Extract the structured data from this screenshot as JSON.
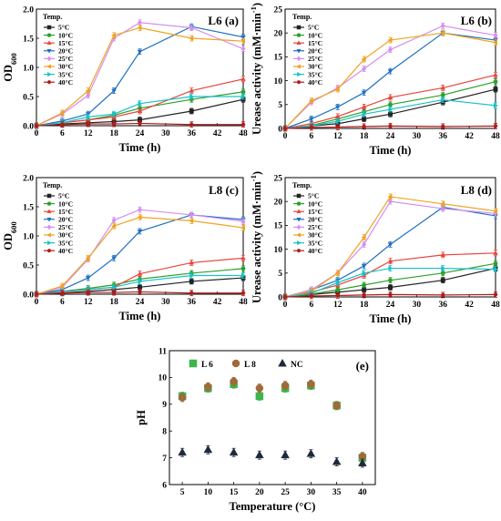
{
  "colors": {
    "5C": "#222222",
    "10C": "#2ca02c",
    "15C": "#e8463c",
    "20C": "#1f6fbf",
    "25C": "#d58ef0",
    "30C": "#f0a31f",
    "35C": "#17c3c9",
    "40C": "#b11a1a",
    "L6": "#3cb54a",
    "L8": "#a06a3a",
    "NC": "#1e2a3c"
  },
  "chart_data": [
    {
      "id": "a",
      "type": "line",
      "panel_label": "L6 (a)",
      "xlabel": "Time (h)",
      "ylabel": "OD",
      "ylabel_sub": "600",
      "xlim": [
        0,
        48
      ],
      "ylim": [
        0,
        2.0
      ],
      "xticks": [
        "0",
        "6",
        "12",
        "18",
        "24",
        "30",
        "36",
        "42",
        "48"
      ],
      "yticks": [
        "0.0",
        "0.5",
        "1.0",
        "1.5",
        "2.0"
      ],
      "legend_title": "Temp.",
      "x": [
        0,
        6,
        12,
        18,
        24,
        36,
        48
      ],
      "series": [
        {
          "name": "5°C",
          "key": "5C",
          "marker": "square",
          "values": [
            0,
            0.03,
            0.05,
            0.07,
            0.1,
            0.25,
            0.45
          ]
        },
        {
          "name": "10°C",
          "key": "10C",
          "marker": "circle",
          "values": [
            0,
            0.05,
            0.1,
            0.18,
            0.3,
            0.45,
            0.58
          ]
        },
        {
          "name": "15°C",
          "key": "15C",
          "marker": "triangle",
          "values": [
            0,
            0.05,
            0.1,
            0.15,
            0.25,
            0.6,
            0.8
          ]
        },
        {
          "name": "20°C",
          "key": "20C",
          "marker": "triangle-down",
          "values": [
            0,
            0.08,
            0.2,
            0.6,
            1.27,
            1.7,
            1.52
          ]
        },
        {
          "name": "25°C",
          "key": "25C",
          "marker": "diamond",
          "values": [
            0,
            0.2,
            0.52,
            1.5,
            1.77,
            1.68,
            1.32
          ]
        },
        {
          "name": "30°C",
          "key": "30C",
          "marker": "triangle-left",
          "values": [
            0,
            0.22,
            0.6,
            1.55,
            1.68,
            1.5,
            1.45
          ]
        },
        {
          "name": "35°C",
          "key": "35C",
          "marker": "triangle-right",
          "values": [
            0,
            0.05,
            0.15,
            0.2,
            0.38,
            0.5,
            0.5
          ]
        },
        {
          "name": "40°C",
          "key": "40C",
          "marker": "hexagon",
          "values": [
            0,
            0.02,
            0.03,
            0.03,
            0.04,
            0.02,
            0.02
          ]
        }
      ]
    },
    {
      "id": "b",
      "type": "line",
      "panel_label": "L6 (b)",
      "xlabel": "Time (h)",
      "ylabel": "Urease activity (mM·min",
      "ylabel_sup": "-1",
      "ylabel_end": ")",
      "xlim": [
        0,
        48
      ],
      "ylim": [
        0,
        25
      ],
      "xticks": [
        "0",
        "6",
        "12",
        "18",
        "24",
        "30",
        "36",
        "42",
        "48"
      ],
      "yticks": [
        "0",
        "5",
        "10",
        "15",
        "20",
        "25"
      ],
      "legend_title": "Temp.",
      "x": [
        0,
        6,
        12,
        18,
        24,
        36,
        48
      ],
      "series": [
        {
          "name": "5°C",
          "key": "5C",
          "marker": "square",
          "values": [
            0,
            0.5,
            1.0,
            2.0,
            3.0,
            5.5,
            8.2
          ]
        },
        {
          "name": "10°C",
          "key": "10C",
          "marker": "circle",
          "values": [
            0,
            0.6,
            2.0,
            3.5,
            5.0,
            7.0,
            9.8
          ]
        },
        {
          "name": "15°C",
          "key": "15C",
          "marker": "triangle",
          "values": [
            0,
            1.0,
            2.5,
            4.5,
            6.5,
            8.5,
            11.2
          ]
        },
        {
          "name": "20°C",
          "key": "20C",
          "marker": "triangle-down",
          "values": [
            0,
            2.0,
            4.5,
            7.5,
            12.0,
            20.0,
            18.5
          ]
        },
        {
          "name": "25°C",
          "key": "25C",
          "marker": "diamond",
          "values": [
            0,
            5.5,
            8.5,
            12.5,
            16.5,
            21.5,
            19.5
          ]
        },
        {
          "name": "30°C",
          "key": "30C",
          "marker": "triangle-left",
          "values": [
            0,
            5.8,
            8.2,
            14.5,
            18.5,
            20.0,
            18.0
          ]
        },
        {
          "name": "35°C",
          "key": "35C",
          "marker": "triangle-right",
          "values": [
            0,
            0.5,
            1.5,
            3.0,
            4.0,
            6.0,
            4.8
          ]
        },
        {
          "name": "40°C",
          "key": "40C",
          "marker": "hexagon",
          "values": [
            0,
            0.2,
            0.3,
            0.4,
            0.5,
            0.4,
            0.5
          ]
        }
      ]
    },
    {
      "id": "c",
      "type": "line",
      "panel_label": "L8 (c)",
      "xlabel": "Time (h)",
      "ylabel": "OD",
      "ylabel_sub": "600",
      "xlim": [
        0,
        48
      ],
      "ylim": [
        0,
        2.0
      ],
      "xticks": [
        "0",
        "6",
        "12",
        "18",
        "24",
        "30",
        "36",
        "42",
        "48"
      ],
      "yticks": [
        "0.0",
        "0.5",
        "1.0",
        "1.5",
        "2.0"
      ],
      "legend_title": "Temp.",
      "x": [
        0,
        6,
        12,
        18,
        24,
        36,
        48
      ],
      "series": [
        {
          "name": "5°C",
          "key": "5C",
          "marker": "square",
          "values": [
            0,
            0.02,
            0.05,
            0.08,
            0.12,
            0.22,
            0.28
          ]
        },
        {
          "name": "10°C",
          "key": "10C",
          "marker": "circle",
          "values": [
            0,
            0.05,
            0.1,
            0.16,
            0.26,
            0.36,
            0.44
          ]
        },
        {
          "name": "15°C",
          "key": "15C",
          "marker": "triangle",
          "values": [
            0,
            0.05,
            0.08,
            0.12,
            0.35,
            0.54,
            0.62
          ]
        },
        {
          "name": "20°C",
          "key": "20C",
          "marker": "triangle-down",
          "values": [
            0,
            0.08,
            0.28,
            0.62,
            1.08,
            1.36,
            1.28
          ]
        },
        {
          "name": "25°C",
          "key": "25C",
          "marker": "diamond",
          "values": [
            0,
            0.12,
            0.6,
            1.27,
            1.45,
            1.36,
            1.25
          ]
        },
        {
          "name": "30°C",
          "key": "30C",
          "marker": "triangle-left",
          "values": [
            0,
            0.14,
            0.62,
            1.17,
            1.32,
            1.26,
            1.14
          ]
        },
        {
          "name": "35°C",
          "key": "35C",
          "marker": "triangle-right",
          "values": [
            0,
            0.04,
            0.08,
            0.12,
            0.22,
            0.32,
            0.32
          ]
        },
        {
          "name": "40°C",
          "key": "40C",
          "marker": "hexagon",
          "values": [
            0,
            0.02,
            0.03,
            0.03,
            0.04,
            0.02,
            0.02
          ]
        }
      ]
    },
    {
      "id": "d",
      "type": "line",
      "panel_label": "L8 (d)",
      "xlabel": "Time (h)",
      "ylabel": "Urease activity (mM·min",
      "ylabel_sup": "-1",
      "ylabel_end": ")",
      "xlim": [
        0,
        48
      ],
      "ylim": [
        0,
        25
      ],
      "xticks": [
        "0",
        "6",
        "12",
        "18",
        "24",
        "30",
        "36",
        "42",
        "48"
      ],
      "yticks": [
        "0",
        "5",
        "10",
        "15",
        "20",
        "25"
      ],
      "legend_title": "Temp.",
      "x": [
        0,
        6,
        12,
        18,
        24,
        36,
        48
      ],
      "series": [
        {
          "name": "5°C",
          "key": "5C",
          "marker": "square",
          "values": [
            0,
            0.5,
            1.0,
            1.5,
            2.0,
            3.5,
            6.0
          ]
        },
        {
          "name": "10°C",
          "key": "10C",
          "marker": "circle",
          "values": [
            0,
            0.6,
            1.5,
            2.5,
            3.5,
            5.0,
            7.0
          ]
        },
        {
          "name": "15°C",
          "key": "15C",
          "marker": "triangle",
          "values": [
            0,
            1.0,
            2.5,
            4.5,
            7.5,
            8.8,
            9.2
          ]
        },
        {
          "name": "20°C",
          "key": "20C",
          "marker": "triangle-down",
          "values": [
            0,
            1.5,
            3.5,
            6.5,
            11.0,
            18.8,
            17.0
          ]
        },
        {
          "name": "25°C",
          "key": "25C",
          "marker": "diamond",
          "values": [
            0,
            1.5,
            5.0,
            11.0,
            20.0,
            18.5,
            17.5
          ]
        },
        {
          "name": "30°C",
          "key": "30C",
          "marker": "triangle-left",
          "values": [
            0,
            1.2,
            5.0,
            12.5,
            21.0,
            19.5,
            18.0
          ]
        },
        {
          "name": "35°C",
          "key": "35C",
          "marker": "triangle-right",
          "values": [
            0,
            0.8,
            3.0,
            5.0,
            6.0,
            6.0,
            5.8
          ]
        },
        {
          "name": "40°C",
          "key": "40C",
          "marker": "hexagon",
          "values": [
            0,
            0.2,
            0.3,
            0.4,
            0.5,
            0.4,
            0.5
          ]
        }
      ]
    },
    {
      "id": "e",
      "type": "scatter",
      "panel_label": "(e)",
      "xlabel": "Temperature (°C)",
      "ylabel": "pH",
      "xlim": [
        2.5,
        42.5
      ],
      "ylim": [
        6,
        11
      ],
      "xticks": [
        "5",
        "10",
        "15",
        "20",
        "25",
        "30",
        "35",
        "40"
      ],
      "yticks": [
        "6",
        "7",
        "8",
        "9",
        "10",
        "11"
      ],
      "x": [
        5,
        10,
        15,
        20,
        25,
        30,
        35,
        40
      ],
      "series": [
        {
          "name": "L 6",
          "key": "L6",
          "marker": "square",
          "values": [
            9.3,
            9.6,
            9.75,
            9.3,
            9.6,
            9.7,
            8.95,
            7.0
          ]
        },
        {
          "name": "L 8",
          "key": "L8",
          "marker": "circle",
          "values": [
            9.25,
            9.65,
            9.85,
            9.6,
            9.7,
            9.75,
            8.95,
            7.05
          ]
        },
        {
          "name": "NC",
          "key": "NC",
          "marker": "triangle",
          "values": [
            7.2,
            7.3,
            7.2,
            7.1,
            7.1,
            7.15,
            6.85,
            6.8
          ]
        }
      ]
    }
  ]
}
